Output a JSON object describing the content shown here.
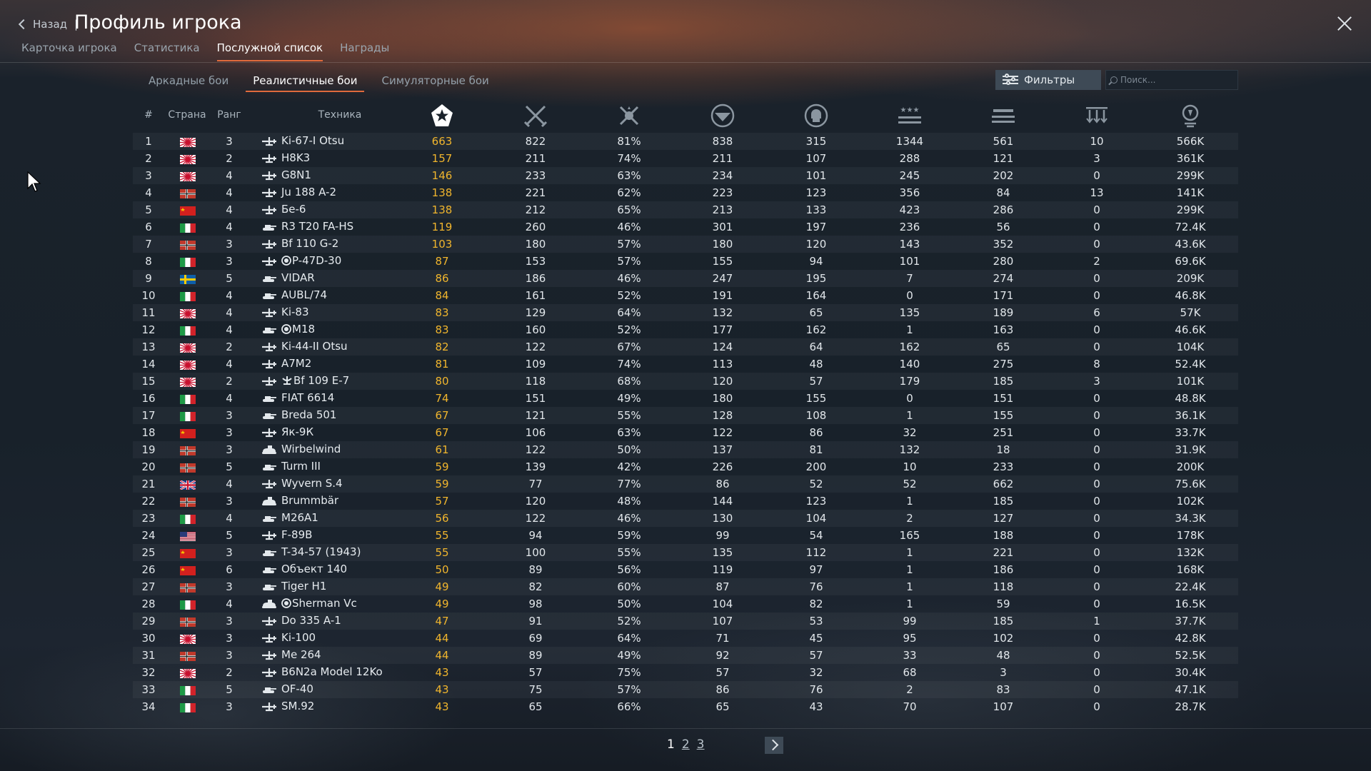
{
  "header": {
    "back_label": "Назад",
    "separator": "|",
    "title": "Профиль игрока",
    "tabs": [
      {
        "label": "Карточка игрока",
        "active": false
      },
      {
        "label": "Статистика",
        "active": false
      },
      {
        "label": "Послужной список",
        "active": true
      },
      {
        "label": "Награды",
        "active": false
      }
    ]
  },
  "mode_tabs": [
    {
      "label": "Аркадные бои",
      "active": false
    },
    {
      "label": "Реалистичные бои",
      "active": true
    },
    {
      "label": "Симуляторные бои",
      "active": false
    }
  ],
  "filters": {
    "label": "Фильтры",
    "search_placeholder": "Поиск..."
  },
  "columns": {
    "num": "#",
    "country": "Страна",
    "rank": "Ранг",
    "vehicle": "Техника",
    "icons": [
      "victories-icon",
      "battles-icon",
      "winrate-icon",
      "respawns-icon",
      "deaths-icon",
      "air-kills-icon",
      "ground-kills-icon",
      "naval-kills-icon",
      "experience-icon"
    ]
  },
  "colors": {
    "accent": "#e06a3c",
    "gold": "#f0b52d"
  },
  "rows": [
    {
      "n": "1",
      "flag": "japan",
      "rank": "3",
      "type": "plane",
      "prem": "",
      "name": "Ki-67-I Otsu",
      "v": "663",
      "b": "822",
      "w": "81%",
      "r": "838",
      "d": "315",
      "ak": "1344",
      "gk": "561",
      "nk": "10",
      "xp": "566K"
    },
    {
      "n": "2",
      "flag": "japan",
      "rank": "2",
      "type": "plane",
      "prem": "",
      "name": "H8K3",
      "v": "157",
      "b": "211",
      "w": "74%",
      "r": "211",
      "d": "107",
      "ak": "288",
      "gk": "121",
      "nk": "3",
      "xp": "361K"
    },
    {
      "n": "3",
      "flag": "japan",
      "rank": "4",
      "type": "plane",
      "prem": "",
      "name": "G8N1",
      "v": "146",
      "b": "233",
      "w": "63%",
      "r": "234",
      "d": "101",
      "ak": "245",
      "gk": "202",
      "nk": "0",
      "xp": "299K"
    },
    {
      "n": "4",
      "flag": "germany",
      "rank": "4",
      "type": "plane",
      "prem": "",
      "name": "Ju 188 A-2",
      "v": "138",
      "b": "221",
      "w": "62%",
      "r": "223",
      "d": "123",
      "ak": "356",
      "gk": "84",
      "nk": "13",
      "xp": "141K"
    },
    {
      "n": "5",
      "flag": "ussr",
      "rank": "4",
      "type": "plane",
      "prem": "",
      "name": "Бе-6",
      "v": "138",
      "b": "212",
      "w": "65%",
      "r": "213",
      "d": "133",
      "ak": "423",
      "gk": "286",
      "nk": "0",
      "xp": "299K"
    },
    {
      "n": "6",
      "flag": "italy",
      "rank": "4",
      "type": "tank",
      "prem": "",
      "name": "R3 T20 FA-HS",
      "v": "119",
      "b": "260",
      "w": "46%",
      "r": "301",
      "d": "197",
      "ak": "236",
      "gk": "56",
      "nk": "0",
      "xp": "72.4K"
    },
    {
      "n": "7",
      "flag": "germany",
      "rank": "3",
      "type": "plane",
      "prem": "",
      "name": "Bf 110 G-2",
      "v": "103",
      "b": "180",
      "w": "57%",
      "r": "180",
      "d": "120",
      "ak": "143",
      "gk": "352",
      "nk": "0",
      "xp": "43.6K"
    },
    {
      "n": "8",
      "flag": "italy",
      "rank": "3",
      "type": "plane",
      "prem": "usa",
      "name": "P-47D-30",
      "v": "87",
      "b": "153",
      "w": "57%",
      "r": "155",
      "d": "94",
      "ak": "101",
      "gk": "280",
      "nk": "2",
      "xp": "69.6K"
    },
    {
      "n": "9",
      "flag": "sweden",
      "rank": "5",
      "type": "tank",
      "prem": "",
      "name": "VIDAR",
      "v": "86",
      "b": "186",
      "w": "46%",
      "r": "247",
      "d": "195",
      "ak": "7",
      "gk": "274",
      "nk": "0",
      "xp": "209K"
    },
    {
      "n": "10",
      "flag": "italy",
      "rank": "4",
      "type": "tank",
      "prem": "",
      "name": "AUBL/74",
      "v": "84",
      "b": "161",
      "w": "52%",
      "r": "191",
      "d": "164",
      "ak": "0",
      "gk": "171",
      "nk": "0",
      "xp": "46.8K"
    },
    {
      "n": "11",
      "flag": "japan",
      "rank": "4",
      "type": "plane",
      "prem": "",
      "name": "Ki-83",
      "v": "83",
      "b": "129",
      "w": "64%",
      "r": "132",
      "d": "65",
      "ak": "135",
      "gk": "189",
      "nk": "6",
      "xp": "57K"
    },
    {
      "n": "12",
      "flag": "italy",
      "rank": "4",
      "type": "tank",
      "prem": "usa",
      "name": "M18",
      "v": "83",
      "b": "160",
      "w": "52%",
      "r": "177",
      "d": "162",
      "ak": "1",
      "gk": "163",
      "nk": "0",
      "xp": "46.6K"
    },
    {
      "n": "13",
      "flag": "japan",
      "rank": "2",
      "type": "plane",
      "prem": "",
      "name": "Ki-44-II Otsu",
      "v": "82",
      "b": "122",
      "w": "67%",
      "r": "124",
      "d": "64",
      "ak": "162",
      "gk": "65",
      "nk": "0",
      "xp": "104K"
    },
    {
      "n": "14",
      "flag": "japan",
      "rank": "4",
      "type": "plane",
      "prem": "",
      "name": "A7M2",
      "v": "81",
      "b": "109",
      "w": "74%",
      "r": "113",
      "d": "48",
      "ak": "140",
      "gk": "275",
      "nk": "8",
      "xp": "52.4K"
    },
    {
      "n": "15",
      "flag": "japan",
      "rank": "2",
      "type": "plane",
      "prem": "germany",
      "name": "Bf 109 E-7",
      "v": "80",
      "b": "118",
      "w": "68%",
      "r": "120",
      "d": "57",
      "ak": "179",
      "gk": "185",
      "nk": "3",
      "xp": "101K"
    },
    {
      "n": "16",
      "flag": "italy",
      "rank": "4",
      "type": "tank",
      "prem": "",
      "name": "FIAT 6614",
      "v": "74",
      "b": "151",
      "w": "49%",
      "r": "180",
      "d": "155",
      "ak": "0",
      "gk": "151",
      "nk": "0",
      "xp": "48.8K"
    },
    {
      "n": "17",
      "flag": "italy",
      "rank": "3",
      "type": "tank",
      "prem": "",
      "name": "Breda 501",
      "v": "67",
      "b": "121",
      "w": "55%",
      "r": "128",
      "d": "108",
      "ak": "1",
      "gk": "155",
      "nk": "0",
      "xp": "36.1K"
    },
    {
      "n": "18",
      "flag": "ussr",
      "rank": "3",
      "type": "plane",
      "prem": "",
      "name": "Як-9К",
      "v": "67",
      "b": "106",
      "w": "63%",
      "r": "122",
      "d": "86",
      "ak": "32",
      "gk": "251",
      "nk": "0",
      "xp": "33.7K"
    },
    {
      "n": "19",
      "flag": "germany",
      "rank": "3",
      "type": "spaa",
      "prem": "",
      "name": "Wirbelwind",
      "v": "61",
      "b": "122",
      "w": "50%",
      "r": "137",
      "d": "81",
      "ak": "132",
      "gk": "18",
      "nk": "0",
      "xp": "31.9K"
    },
    {
      "n": "20",
      "flag": "germany",
      "rank": "5",
      "type": "tank",
      "prem": "",
      "name": "Turm III",
      "v": "59",
      "b": "139",
      "w": "42%",
      "r": "226",
      "d": "200",
      "ak": "10",
      "gk": "233",
      "nk": "0",
      "xp": "200K"
    },
    {
      "n": "21",
      "flag": "britain",
      "rank": "4",
      "type": "plane",
      "prem": "",
      "name": "Wyvern S.4",
      "v": "59",
      "b": "77",
      "w": "77%",
      "r": "86",
      "d": "52",
      "ak": "52",
      "gk": "662",
      "nk": "0",
      "xp": "75.6K"
    },
    {
      "n": "22",
      "flag": "germany",
      "rank": "3",
      "type": "spaa",
      "prem": "",
      "name": "Brummbär",
      "v": "57",
      "b": "120",
      "w": "48%",
      "r": "144",
      "d": "123",
      "ak": "1",
      "gk": "185",
      "nk": "0",
      "xp": "102K"
    },
    {
      "n": "23",
      "flag": "italy",
      "rank": "4",
      "type": "tank",
      "prem": "",
      "name": "M26A1",
      "v": "56",
      "b": "122",
      "w": "46%",
      "r": "130",
      "d": "104",
      "ak": "2",
      "gk": "127",
      "nk": "0",
      "xp": "34.3K"
    },
    {
      "n": "24",
      "flag": "usa",
      "rank": "5",
      "type": "plane",
      "prem": "",
      "name": "F-89B",
      "v": "55",
      "b": "94",
      "w": "59%",
      "r": "99",
      "d": "54",
      "ak": "165",
      "gk": "188",
      "nk": "0",
      "xp": "178K"
    },
    {
      "n": "25",
      "flag": "ussr",
      "rank": "3",
      "type": "tank",
      "prem": "",
      "name": "T-34-57 (1943)",
      "v": "55",
      "b": "100",
      "w": "55%",
      "r": "135",
      "d": "112",
      "ak": "1",
      "gk": "221",
      "nk": "0",
      "xp": "132K"
    },
    {
      "n": "26",
      "flag": "ussr",
      "rank": "6",
      "type": "tank",
      "prem": "",
      "name": "Объект 140",
      "v": "50",
      "b": "89",
      "w": "56%",
      "r": "119",
      "d": "97",
      "ak": "1",
      "gk": "186",
      "nk": "0",
      "xp": "168K"
    },
    {
      "n": "27",
      "flag": "germany",
      "rank": "3",
      "type": "tank",
      "prem": "",
      "name": "Tiger H1",
      "v": "49",
      "b": "82",
      "w": "60%",
      "r": "87",
      "d": "76",
      "ak": "1",
      "gk": "118",
      "nk": "0",
      "xp": "22.4K"
    },
    {
      "n": "28",
      "flag": "italy",
      "rank": "4",
      "type": "spaa",
      "prem": "usa",
      "name": "Sherman Vc",
      "v": "49",
      "b": "98",
      "w": "50%",
      "r": "104",
      "d": "82",
      "ak": "1",
      "gk": "59",
      "nk": "0",
      "xp": "16.5K"
    },
    {
      "n": "29",
      "flag": "germany",
      "rank": "3",
      "type": "plane",
      "prem": "",
      "name": "Do 335 A-1",
      "v": "47",
      "b": "91",
      "w": "52%",
      "r": "107",
      "d": "53",
      "ak": "99",
      "gk": "185",
      "nk": "1",
      "xp": "37.7K"
    },
    {
      "n": "30",
      "flag": "japan",
      "rank": "3",
      "type": "plane",
      "prem": "",
      "name": "Ki-100",
      "v": "44",
      "b": "69",
      "w": "64%",
      "r": "71",
      "d": "45",
      "ak": "95",
      "gk": "102",
      "nk": "0",
      "xp": "42.8K"
    },
    {
      "n": "31",
      "flag": "germany",
      "rank": "3",
      "type": "plane",
      "prem": "",
      "name": "Me 264",
      "v": "44",
      "b": "89",
      "w": "49%",
      "r": "92",
      "d": "57",
      "ak": "33",
      "gk": "48",
      "nk": "0",
      "xp": "52.5K"
    },
    {
      "n": "32",
      "flag": "japan",
      "rank": "2",
      "type": "plane",
      "prem": "",
      "name": "B6N2a Model 12Ko",
      "v": "43",
      "b": "57",
      "w": "75%",
      "r": "57",
      "d": "32",
      "ak": "68",
      "gk": "3",
      "nk": "0",
      "xp": "30.4K"
    },
    {
      "n": "33",
      "flag": "italy",
      "rank": "5",
      "type": "tank",
      "prem": "",
      "name": "OF-40",
      "v": "43",
      "b": "75",
      "w": "57%",
      "r": "86",
      "d": "76",
      "ak": "2",
      "gk": "83",
      "nk": "0",
      "xp": "47.1K"
    },
    {
      "n": "34",
      "flag": "italy",
      "rank": "3",
      "type": "plane",
      "prem": "",
      "name": "SM.92",
      "v": "43",
      "b": "65",
      "w": "66%",
      "r": "65",
      "d": "43",
      "ak": "70",
      "gk": "107",
      "nk": "0",
      "xp": "28.7K"
    }
  ],
  "pagination": {
    "pages": [
      "1",
      "2",
      "3"
    ],
    "current": "1"
  }
}
